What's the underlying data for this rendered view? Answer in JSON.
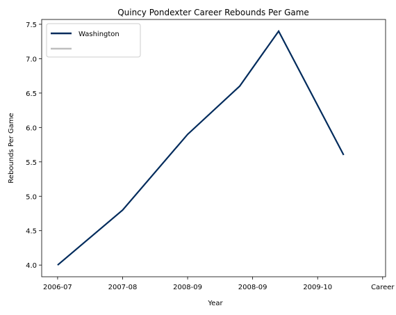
{
  "chart_data": {
    "type": "line",
    "title": "Quincy Pondexter Career Rebounds Per Game",
    "xlabel": "Year",
    "ylabel": "Rebounds Per Game",
    "categories": [
      "2006-07",
      "2007-08",
      "2008-09",
      "2008-09",
      "2009-10",
      "Career"
    ],
    "series": [
      {
        "name": "Washington",
        "color": "#002B5C",
        "x": [
          0,
          1,
          2,
          2.8,
          3.4,
          4.4
        ],
        "values": [
          4.0,
          4.8,
          5.9,
          6.6,
          7.4,
          5.6
        ]
      },
      {
        "name": "",
        "color": "#BFBFBF",
        "x": [],
        "values": []
      }
    ],
    "xtick_positions": [
      0,
      1,
      2,
      3,
      4,
      5
    ],
    "xlim": [
      -0.245,
      5.045
    ],
    "ylim": [
      3.83,
      7.57
    ],
    "yticks": [
      "4.0",
      "4.5",
      "5.0",
      "5.5",
      "6.0",
      "6.5",
      "7.0",
      "7.5"
    ],
    "legend_position": "top-left",
    "grid": false
  }
}
